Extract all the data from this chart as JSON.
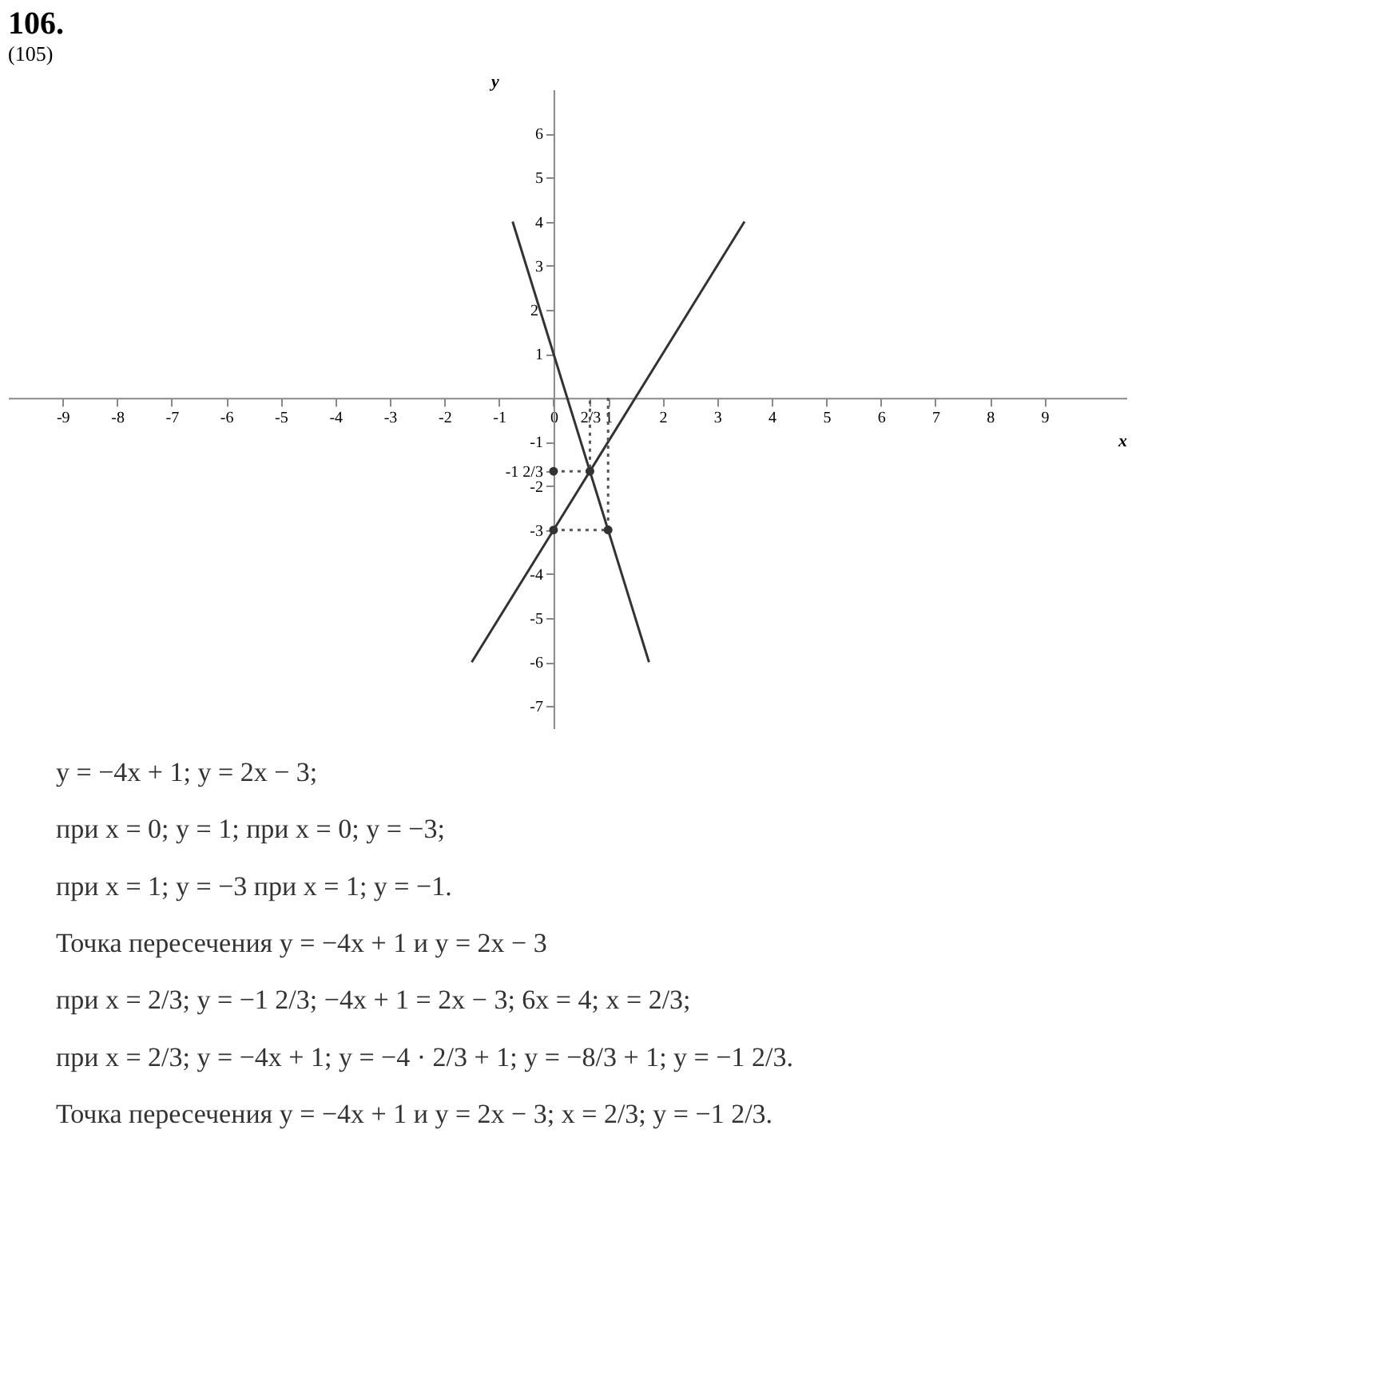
{
  "chart_data": {
    "type": "line",
    "title": "106.",
    "subtitle": "(105)",
    "xlabel": "x",
    "ylabel": "y",
    "xlim": [
      -10,
      10.5
    ],
    "ylim": [
      -7.5,
      7
    ],
    "xticks": [
      -9,
      -8,
      -7,
      -6,
      -5,
      -4,
      -3,
      -2,
      -1,
      0,
      {
        "value": 0.667,
        "label": "2/3"
      },
      1,
      2,
      3,
      4,
      5,
      6,
      7,
      8,
      9
    ],
    "yticks": [
      -7,
      -6,
      -5,
      -4,
      -3,
      -2,
      {
        "value": -1.667,
        "label": "-1 2/3"
      },
      -1,
      1,
      2,
      3,
      4,
      5,
      6
    ],
    "grid": false,
    "series": [
      {
        "color": "#333333",
        "line_style": "solid",
        "x": [
          -0.75,
          0,
          1,
          1.75
        ],
        "values": [
          4,
          1,
          -3,
          -6
        ]
      },
      {
        "color": "#333333",
        "line_style": "solid",
        "x": [
          -1.5,
          0,
          1,
          3.5
        ],
        "values": [
          -6,
          -3,
          -1,
          4
        ]
      },
      {
        "color": "#555555",
        "line_style": "dotted",
        "x": [
          0,
          0.667,
          0.667
        ],
        "values": [
          -1.667,
          -1.667,
          0
        ]
      },
      {
        "color": "#555555",
        "line_style": "dotted",
        "x": [
          0,
          1,
          1
        ],
        "values": [
          -3,
          -3,
          0
        ]
      },
      {
        "type": "scatter",
        "color": "#333333",
        "marker": "circle",
        "x": [
          0.667,
          1,
          0,
          0
        ],
        "values": [
          -1.667,
          -3,
          -1.667,
          -3
        ]
      }
    ],
    "annotations": [
      "y = −4x + 1;          y = 2x − 3;",
      "при x = 0; y = 1;          при x = 0; y = −3;",
      "при x = 1; y = −3          при x = 1; y = −1.",
      "Точка пересечения y = −4x + 1 и y = 2x − 3",
      "при x = 2/3; y = −1 2/3; −4x + 1 = 2x − 3; 6x = 4; x = 2/3;",
      "при x = 2/3; y = −4x + 1; y = −4 · 2/3 + 1; y = −8/3 + 1; y = −1 2/3.",
      "Точка пересечения y = −4x + 1 и y = 2x − 3; x = 2/3; y = −1 2/3."
    ]
  }
}
